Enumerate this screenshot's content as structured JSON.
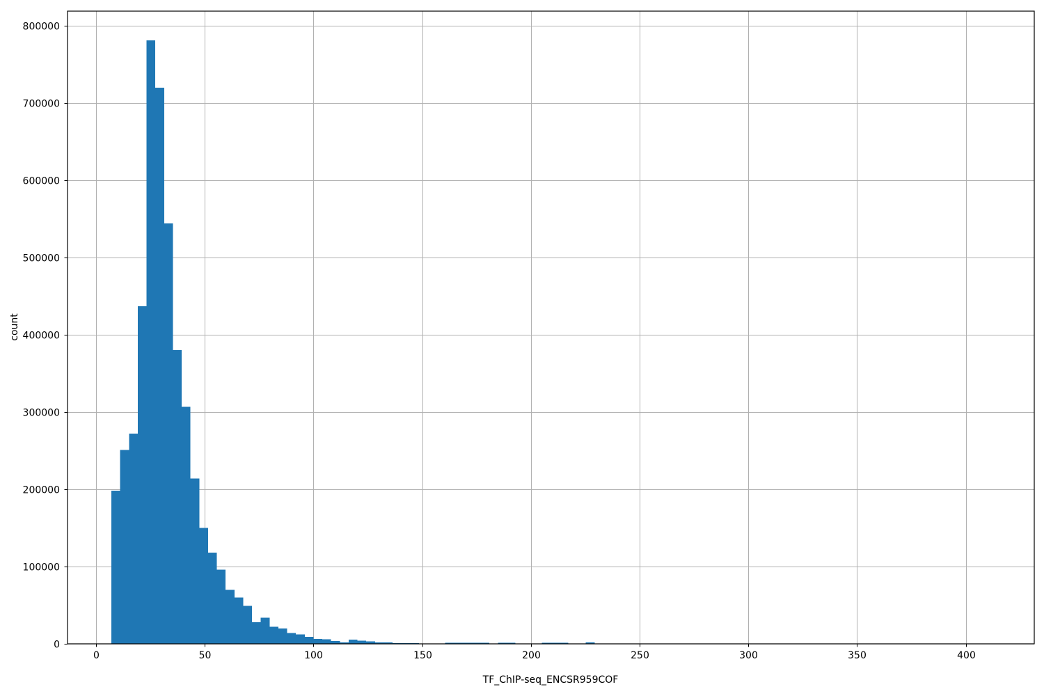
{
  "chart_data": {
    "type": "bar",
    "subtype": "histogram",
    "title": "",
    "xlabel": "TF_ChIP-seq_ENCSR959COF",
    "ylabel": "count",
    "legend": null,
    "grid": true,
    "bar_color": "#1f77b4",
    "grid_color": "#b0b0b0",
    "spine_color": "#000000",
    "text_color": "#000000",
    "background_color": "#ffffff",
    "xlim": [
      -13.1,
      431.5
    ],
    "ylim": [
      0,
      819000
    ],
    "xticks": [
      0,
      50,
      100,
      150,
      200,
      250,
      300,
      350,
      400
    ],
    "yticks": [
      0,
      100000,
      200000,
      300000,
      400000,
      500000,
      600000,
      700000,
      800000
    ],
    "bin_start": 7.1,
    "bin_width": 4.04,
    "counts": [
      198000,
      251000,
      272000,
      437000,
      781000,
      720000,
      544000,
      380000,
      307000,
      214000,
      150000,
      118000,
      96000,
      70000,
      60000,
      49000,
      28000,
      34000,
      22000,
      20000,
      14000,
      12000,
      9000,
      6500,
      6000,
      3500,
      2000,
      5500,
      4000,
      3000,
      2000,
      2000,
      1000,
      1000,
      1000,
      500,
      0,
      0,
      1200,
      1200,
      1200,
      1200,
      1200,
      0,
      1200,
      1200,
      0,
      0,
      0,
      1200,
      1200,
      1200,
      0,
      0,
      2000,
      0,
      0,
      0,
      0,
      0,
      0,
      0,
      0,
      0,
      0,
      0,
      0,
      0,
      0,
      0,
      0,
      0,
      0,
      0,
      0,
      0,
      0,
      0,
      0,
      0,
      0,
      0,
      0,
      0,
      0,
      0,
      0,
      0,
      0,
      0,
      0,
      0,
      0,
      0,
      0,
      0,
      0,
      0,
      0,
      3
    ]
  }
}
